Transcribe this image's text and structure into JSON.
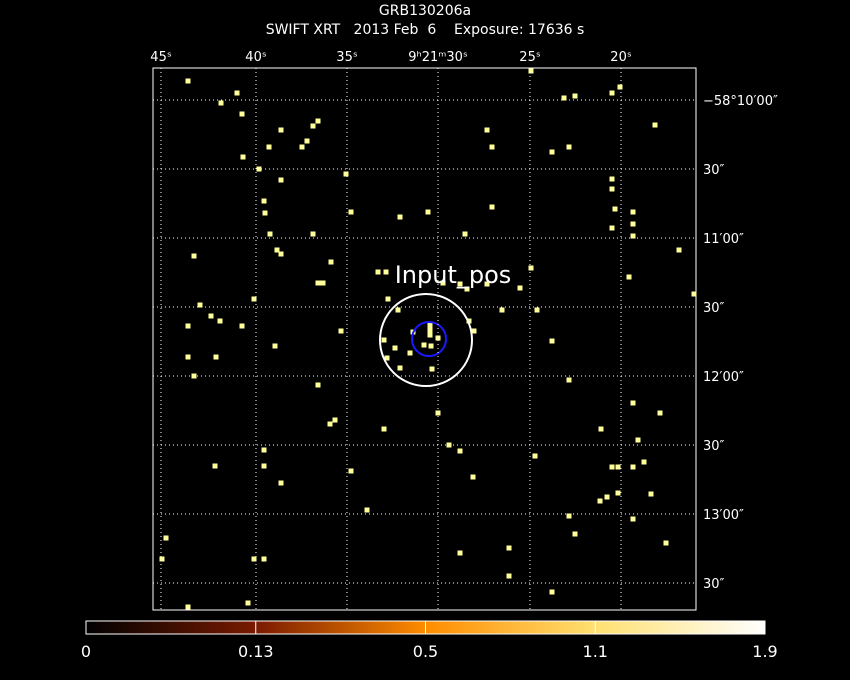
{
  "title": "GRB130206a",
  "subtitle": "SWIFT XRT   2013 Feb  6    Exposure: 17636 s",
  "ra_ticks": [
    "45ˢ",
    "40ˢ",
    "35ˢ",
    "9ʰ21ᵐ30ˢ",
    "25ˢ",
    "20ˢ"
  ],
  "dec_ticks": [
    "−58°10′00″",
    "30″",
    "11′00″",
    "30″",
    "12′00″",
    "30″",
    "13′00″",
    "30″"
  ],
  "source_label": "Input_pos",
  "colorbar_ticks": [
    0,
    0.13,
    0.5,
    1.1,
    1.9
  ]
}
